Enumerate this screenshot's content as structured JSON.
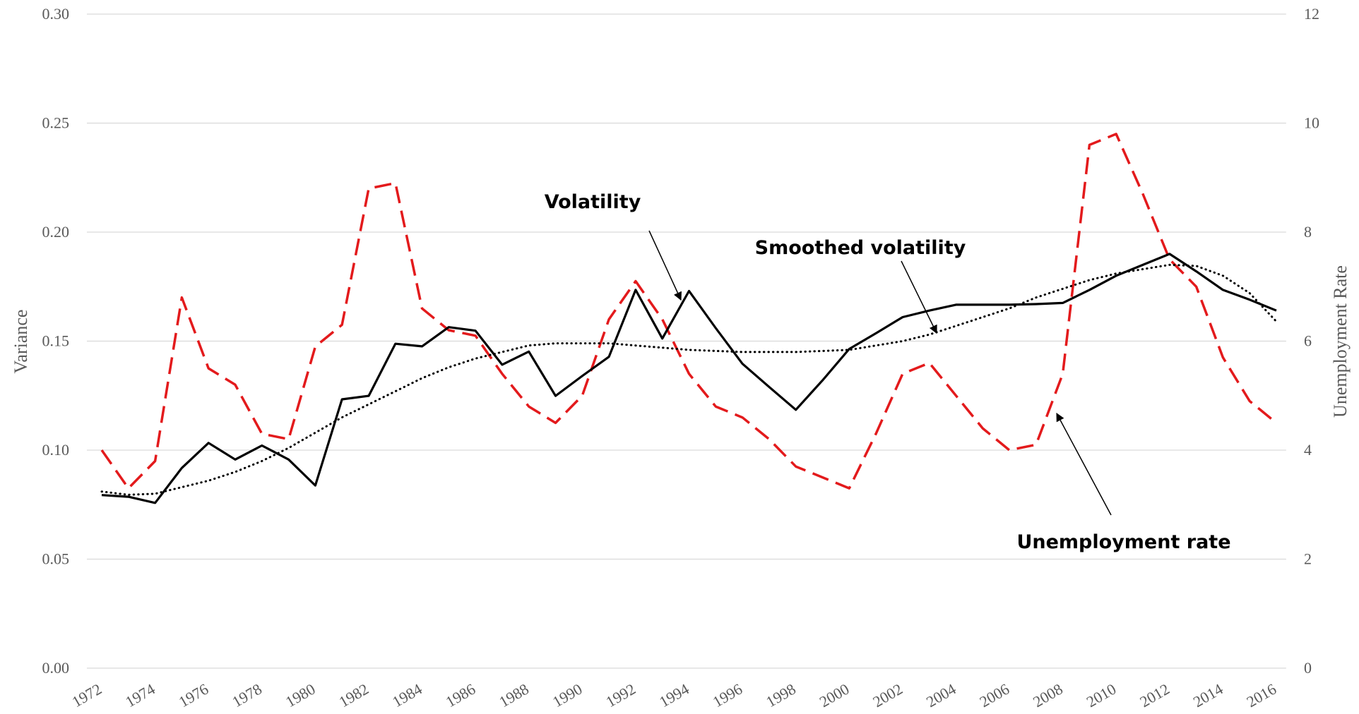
{
  "chart_data": {
    "type": "line",
    "y_label": "Variance",
    "y2_label": "Unemployment Rate",
    "annotations": [
      "Volatility",
      "Smoothed volatility",
      "Unemployment rate"
    ],
    "categories": [
      "1972",
      null,
      "1974",
      null,
      "1976",
      null,
      "1978",
      null,
      "1980",
      null,
      "1982",
      null,
      "1984",
      null,
      "1986",
      null,
      "1988",
      null,
      "1990",
      null,
      "1992",
      null,
      "1994",
      null,
      "1996",
      null,
      "1998",
      null,
      "2000",
      null,
      "2002",
      null,
      "2004",
      null,
      "2006",
      null,
      "2008",
      null,
      "2010",
      null,
      "2012",
      null,
      "2014",
      null,
      "2016"
    ],
    "ylim": [
      0,
      0.3
    ],
    "yticks": [
      {
        "value": 0,
        "label": "0.00"
      },
      {
        "value": 0.05,
        "label": "0.05"
      },
      {
        "value": 0.1,
        "label": "0.10"
      },
      {
        "value": 0.15,
        "label": "0.15"
      },
      {
        "value": 0.2,
        "label": "0.20"
      },
      {
        "value": 0.25,
        "label": "0.25"
      },
      {
        "value": 0.3,
        "label": "0.30"
      }
    ],
    "y2lim": [
      0,
      12
    ],
    "y2ticks": [
      0,
      2,
      4,
      6,
      8,
      10,
      12
    ],
    "grid": true,
    "series": [
      {
        "name": "Volatility",
        "color": "#000000",
        "style": "solid",
        "values": [
          0.0794,
          0.0786,
          0.0758,
          0.0918,
          0.1033,
          0.0957,
          0.1021,
          0.0957,
          0.0838,
          0.1233,
          0.1249,
          0.1488,
          0.1476,
          0.1564,
          0.1548,
          0.1392,
          0.1452,
          0.1249,
          0.134,
          0.1428,
          0.1735,
          0.1512,
          0.173,
          0.156,
          0.1396,
          0.129,
          0.1185,
          0.132,
          0.1464,
          0.1536,
          0.161,
          0.164,
          0.1667,
          0.1667,
          0.1667,
          0.167,
          0.1675,
          0.1735,
          0.18,
          0.185,
          0.19,
          0.182,
          0.1735,
          0.169,
          0.164
        ]
      },
      {
        "name": "Smoothed volatility",
        "color": "#000000",
        "style": "dotted",
        "values": [
          0.081,
          0.0795,
          0.08,
          0.083,
          0.086,
          0.09,
          0.095,
          0.101,
          0.108,
          0.115,
          0.121,
          0.127,
          0.133,
          0.138,
          0.142,
          0.145,
          0.148,
          0.149,
          0.149,
          0.149,
          0.148,
          0.147,
          0.146,
          0.1455,
          0.145,
          0.145,
          0.145,
          0.1455,
          0.146,
          0.148,
          0.15,
          0.153,
          0.157,
          0.161,
          0.165,
          0.17,
          0.174,
          0.178,
          0.181,
          0.183,
          0.185,
          0.1845,
          0.18,
          0.172,
          0.159
        ]
      },
      {
        "name": "Unemployment rate",
        "color": "#e31a1c",
        "style": "dashed",
        "axis": "y2",
        "values": [
          4.0,
          3.3,
          3.8,
          6.8,
          5.5,
          5.2,
          4.3,
          4.2,
          5.9,
          6.3,
          8.8,
          8.9,
          6.6,
          6.2,
          6.1,
          5.4,
          4.8,
          4.5,
          5.0,
          6.4,
          7.1,
          6.4,
          5.4,
          4.8,
          4.6,
          4.2,
          3.7,
          3.5,
          3.3,
          4.3,
          5.4,
          5.6,
          5.0,
          4.4,
          4.0,
          4.1,
          5.4,
          9.6,
          9.8,
          8.7,
          7.5,
          7.0,
          5.7,
          4.9,
          4.5
        ]
      }
    ]
  }
}
